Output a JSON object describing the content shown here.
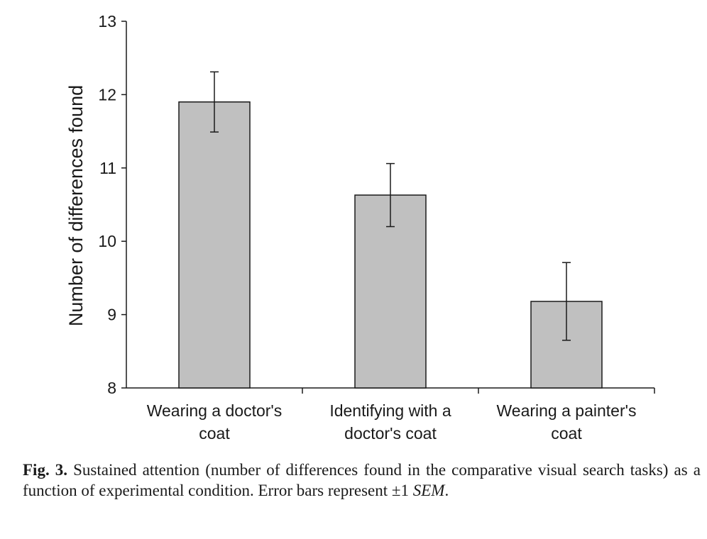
{
  "chart_data": {
    "type": "bar",
    "categories": [
      [
        "Wearing a doctor's",
        "coat"
      ],
      [
        "Identifying with a",
        "doctor's coat"
      ],
      [
        "Wearing a painter's",
        "coat"
      ]
    ],
    "values": [
      11.9,
      10.63,
      9.18
    ],
    "error_bars": [
      0.41,
      0.43,
      0.53
    ],
    "ylabel": "Number of differences found",
    "xlabel": "",
    "ylim": [
      8,
      13
    ],
    "yticks": [
      8,
      9,
      10,
      11,
      12,
      13
    ],
    "bar_color": "#c0c0c0",
    "grid": false,
    "legend": "none"
  },
  "caption": {
    "fig_label": "Fig. 3.",
    "text": " Sustained attention (number of differences found in the comparative visual search tasks) as a function of experimental condition. Error bars represent ±1 ",
    "sem": "SEM",
    "end": "."
  }
}
